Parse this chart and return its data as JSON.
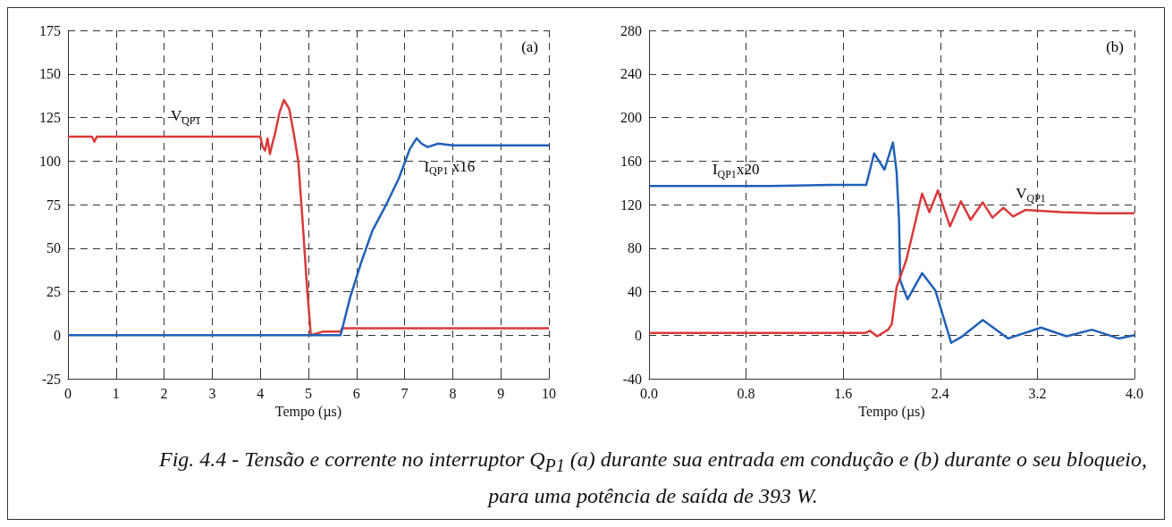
{
  "chart_data": [
    {
      "type": "line",
      "xlabel": "Tempo (µs)",
      "xlim": [
        0,
        10
      ],
      "xticks": [
        0,
        1,
        2,
        3,
        4,
        5,
        6,
        7,
        8,
        9,
        10
      ],
      "ylim": [
        -25,
        175
      ],
      "yticks": [
        -25,
        0,
        25,
        50,
        75,
        100,
        125,
        150,
        175
      ],
      "grid": true,
      "legend": false,
      "marker": "none",
      "line_style": "solid",
      "annotations": [
        "(a)",
        "Fig. 4.4 - Tensão e corrente no interruptor Q$_{P1}$ (a) durante sua entrada em condução e (b) durante o seu bloqueio, para uma potência de saída de 393 W."
      ],
      "series": [
        {
          "name": "V$_{QP1}$",
          "color": "#d93a3a",
          "x": [
            0,
            0.5,
            0.55,
            0.6,
            1.0,
            1.5,
            2.0,
            2.5,
            3.0,
            3.5,
            4.0,
            4.05,
            4.1,
            4.15,
            4.2,
            4.25,
            4.3,
            4.4,
            4.49,
            4.6,
            4.7,
            4.79,
            4.87,
            4.96,
            5.05,
            5.3,
            5.67,
            5.7,
            6.5,
            7.5,
            8.5,
            9.5,
            10
          ],
          "values": [
            114,
            114,
            111,
            114,
            114,
            114,
            114,
            114,
            114,
            114,
            114,
            108,
            106,
            113,
            104,
            110,
            115,
            128,
            135,
            130,
            115,
            99.6,
            69,
            32,
            0,
            2,
            2,
            4,
            4,
            4,
            4,
            4,
            4
          ]
        },
        {
          "name": "I$_{QP1}$ x16",
          "color": "#2060b8",
          "x": [
            0,
            1,
            2,
            3,
            4,
            5,
            5.67,
            5.87,
            6.1,
            6.33,
            6.6,
            6.88,
            7.11,
            7.25,
            7.35,
            7.48,
            7.7,
            8,
            9,
            10
          ],
          "values": [
            0,
            0,
            0,
            0,
            0,
            0,
            0,
            22,
            42,
            60,
            74,
            90,
            107,
            113,
            110,
            108,
            110,
            109,
            109,
            109
          ]
        }
      ]
    },
    {
      "type": "line",
      "xlabel": "Tempo (µs)",
      "xlim": [
        0,
        4
      ],
      "xticks": [
        {
          "value": 0,
          "label": "0.0"
        },
        0.8,
        1.6,
        2.4,
        3.2,
        {
          "value": 4,
          "label": "4.0"
        }
      ],
      "ylim": [
        -40,
        280
      ],
      "yticks": [
        -40,
        0,
        40,
        80,
        120,
        160,
        200,
        240,
        280
      ],
      "grid": true,
      "legend": false,
      "marker": "none",
      "line_style": "solid",
      "annotations": [
        "(b)"
      ],
      "series": [
        {
          "name": "I$_{QP1}$x20",
          "color": "#2060b8",
          "x": [
            0,
            0.5,
            1.0,
            1.5,
            1.79,
            1.855,
            1.94,
            2.01,
            2.04,
            2.06,
            2.07,
            2.13,
            2.25,
            2.36,
            2.49,
            2.57,
            2.75,
            2.96,
            3.23,
            3.44,
            3.65,
            3.87,
            4.0
          ],
          "values": [
            137,
            137,
            137,
            138,
            138,
            167,
            152,
            177,
            150,
            106,
            50,
            33,
            57,
            41,
            -7,
            -2,
            14,
            -3,
            7,
            -1,
            5,
            -3,
            0
          ]
        },
        {
          "name": "V$_{QP1}$",
          "color": "#d93a3a",
          "x": [
            0,
            0.5,
            1.0,
            1.5,
            1.78,
            1.82,
            1.88,
            1.97,
            2.0,
            2.04,
            2.12,
            2.25,
            2.31,
            2.38,
            2.48,
            2.57,
            2.65,
            2.75,
            2.83,
            2.92,
            3.0,
            3.1,
            3.4,
            3.7,
            4.0
          ],
          "values": [
            2,
            2,
            2,
            2,
            2,
            4,
            -1,
            5,
            10,
            44,
            69,
            130,
            113,
            133,
            100,
            123,
            106,
            122,
            108,
            117,
            109,
            115,
            113,
            112,
            112
          ]
        }
      ]
    }
  ]
}
